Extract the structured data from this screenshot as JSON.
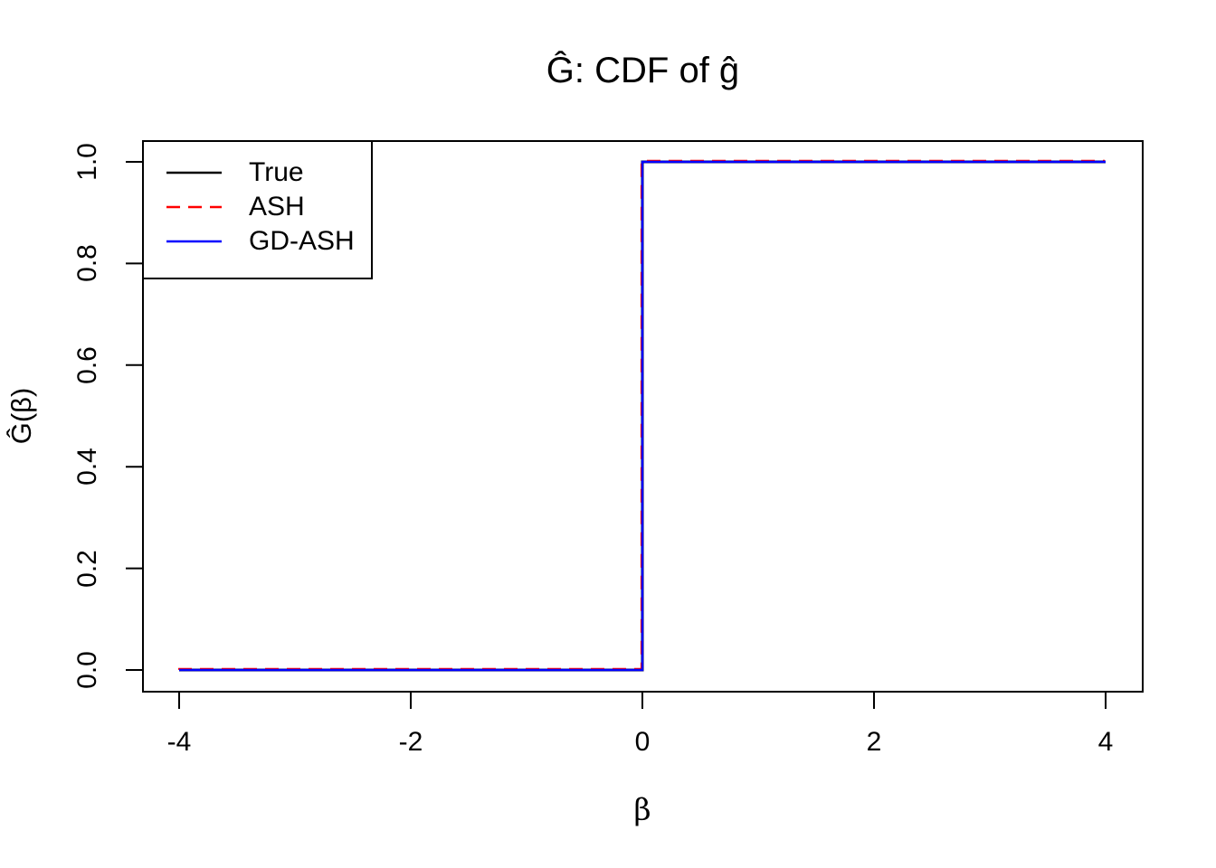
{
  "figure": {
    "background": "#FFFFFF",
    "frame_color": "#000000"
  },
  "chart_data": {
    "type": "line",
    "subtype": "step-function-cdf",
    "title": "Ĝ: CDF of ĝ",
    "xlabel": "β",
    "ylabel": "Ĝ(β)",
    "xlim": [
      -4.32,
      4.32
    ],
    "ylim": [
      -0.04,
      1.04
    ],
    "grid": false,
    "xticks": {
      "values": [
        -4,
        -2,
        0,
        2,
        4
      ],
      "labels": [
        "-4",
        "-2",
        "0",
        "2",
        "4"
      ]
    },
    "yticks": {
      "values": [
        0,
        0.2,
        0.4,
        0.6,
        0.8,
        1
      ],
      "labels": [
        "0.0",
        "0.2",
        "0.4",
        "0.6",
        "0.8",
        "1.0"
      ]
    },
    "legend": {
      "position": "topleft",
      "border": true
    },
    "series": [
      {
        "name": "True",
        "color": "#000000",
        "linestyle": "solid",
        "points": [
          [
            -4,
            0
          ],
          [
            0,
            0
          ],
          [
            0,
            1
          ],
          [
            4,
            1
          ]
        ]
      },
      {
        "name": "ASH",
        "color": "#FF0000",
        "linestyle": "dashed",
        "points": [
          [
            -4,
            0
          ],
          [
            0,
            0
          ],
          [
            0,
            1
          ],
          [
            4,
            1
          ]
        ]
      },
      {
        "name": "GD-ASH",
        "color": "#0000FF",
        "linestyle": "solid",
        "points": [
          [
            -4,
            0
          ],
          [
            0,
            0
          ],
          [
            0,
            1
          ],
          [
            4,
            1
          ]
        ]
      }
    ]
  }
}
